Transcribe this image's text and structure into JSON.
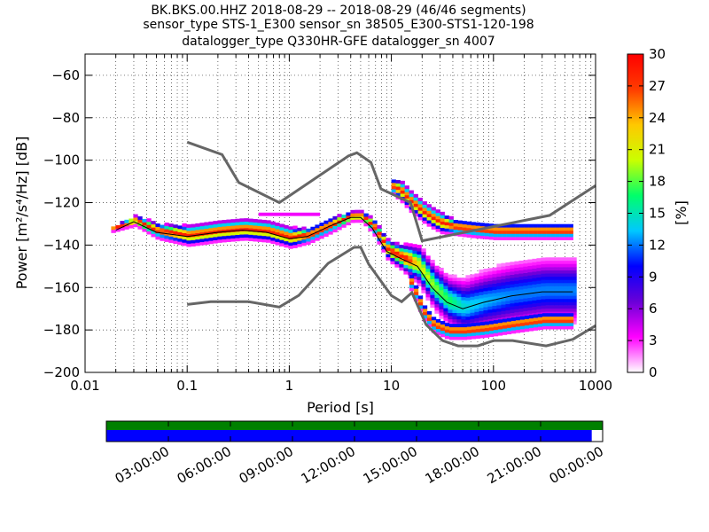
{
  "chart_data": {
    "type": "heatmap",
    "title": [
      "BK.BKS.00.HHZ   2018-08-29 -- 2018-08-29  (46/46 segments)",
      "sensor_type STS-1_E300 sensor_sn 38505_E300-STS1-120-198",
      "datalogger_type Q330HR-GFE datalogger_sn 4007"
    ],
    "xlabel": "Period [s]",
    "ylabel": "Power [m²/s⁴/Hz] [dB]",
    "x_scale": "log",
    "xlim": [
      0.01,
      1000
    ],
    "ylim": [
      -200,
      -50
    ],
    "x_ticks": [
      0.01,
      0.1,
      1,
      10,
      100,
      1000
    ],
    "x_tick_labels": [
      "0.01",
      "0.1",
      "1",
      "10",
      "100",
      "1000"
    ],
    "y_ticks": [
      -200,
      -180,
      -160,
      -140,
      -120,
      -100,
      -80,
      -60
    ],
    "y_tick_labels": [
      "−200",
      "−180",
      "−160",
      "−140",
      "−120",
      "−100",
      "−80",
      "−60"
    ],
    "grid": "dotted",
    "colorbar": {
      "label": "[%]",
      "range": [
        0,
        30
      ],
      "ticks": [
        0,
        3,
        6,
        9,
        12,
        15,
        18,
        21,
        24,
        27,
        30
      ],
      "colormap": [
        "#ffffff",
        "#ff00ff",
        "#6a00d8",
        "#0000ff",
        "#00c8ff",
        "#00ff6a",
        "#caff00",
        "#ffc800",
        "#ff3c00",
        "#ff0000"
      ]
    },
    "high_noise_model": [
      [
        0.1,
        -91.5
      ],
      [
        0.22,
        -97.4
      ],
      [
        0.32,
        -110.5
      ],
      [
        0.8,
        -120
      ],
      [
        3.8,
        -98
      ],
      [
        4.6,
        -96.5
      ],
      [
        6.3,
        -101
      ],
      [
        7.9,
        -113.5
      ],
      [
        15.4,
        -120
      ],
      [
        20,
        -138
      ],
      [
        354.8,
        -126
      ],
      [
        1000,
        -112
      ]
    ],
    "low_noise_model": [
      [
        0.1,
        -168
      ],
      [
        0.17,
        -166.7
      ],
      [
        0.4,
        -166.7
      ],
      [
        0.8,
        -169.2
      ],
      [
        1.24,
        -163.7
      ],
      [
        2.4,
        -148.6
      ],
      [
        4.3,
        -141.1
      ],
      [
        5,
        -141
      ],
      [
        6,
        -149
      ],
      [
        10,
        -163.8
      ],
      [
        12.6,
        -166.7
      ],
      [
        15.9,
        -162.4
      ],
      [
        21.9,
        -177.5
      ],
      [
        31.6,
        -185
      ],
      [
        45,
        -187.5
      ],
      [
        70,
        -187.5
      ],
      [
        101,
        -185
      ],
      [
        154,
        -185
      ],
      [
        328,
        -187.5
      ],
      [
        600,
        -184.4
      ],
      [
        1000,
        -178
      ]
    ],
    "mode_curve": [
      [
        0.02,
        -133
      ],
      [
        0.03,
        -129
      ],
      [
        0.05,
        -134
      ],
      [
        0.1,
        -136
      ],
      [
        0.2,
        -134
      ],
      [
        0.35,
        -133
      ],
      [
        0.6,
        -134
      ],
      [
        1,
        -137
      ],
      [
        1.5,
        -136
      ],
      [
        2.5,
        -131
      ],
      [
        4,
        -127
      ],
      [
        5,
        -127
      ],
      [
        6.5,
        -132
      ],
      [
        9,
        -143
      ],
      [
        12,
        -146
      ],
      [
        18,
        -150
      ],
      [
        25,
        -160
      ],
      [
        35,
        -167
      ],
      [
        50,
        -170
      ],
      [
        80,
        -167
      ],
      [
        150,
        -164
      ],
      [
        300,
        -162
      ],
      [
        600,
        -162
      ]
    ],
    "density_bands": [
      {
        "periods": [
          0.018,
          0.03,
          0.05,
          0.1,
          0.2,
          0.35,
          0.6,
          1,
          1.5,
          2.5,
          4,
          5,
          6.5,
          9,
          12,
          18,
          25,
          35,
          50,
          80,
          150,
          300,
          600
        ],
        "center_db": [
          -133,
          -129,
          -134,
          -136,
          -134,
          -133,
          -134,
          -137,
          -136,
          -131,
          -127,
          -127,
          -132,
          -143,
          -146,
          -150,
          -160,
          -167,
          -170,
          -167,
          -164,
          -162,
          -162
        ],
        "spread_db": [
          1,
          2,
          3,
          4,
          4,
          4,
          4,
          4,
          3,
          3,
          2,
          2,
          3,
          4,
          5,
          8,
          9,
          10,
          12,
          13,
          14,
          14,
          14
        ]
      },
      {
        "periods": [
          10,
          12,
          15,
          20,
          25,
          30,
          40,
          60,
          100,
          200,
          400,
          600
        ],
        "center_db": [
          -113,
          -115,
          -120,
          -125,
          -128,
          -130,
          -132,
          -133,
          -134,
          -134,
          -134,
          -134
        ],
        "spread_db": [
          3,
          4,
          4,
          4,
          4,
          4,
          3,
          3,
          3,
          3,
          3,
          3
        ]
      },
      {
        "periods": [
          15,
          20,
          25,
          35,
          50,
          80,
          150,
          300,
          600
        ],
        "center_db": [
          -158,
          -172,
          -178,
          -181,
          -181,
          -180,
          -178,
          -176,
          -176
        ],
        "spread_db": [
          3,
          3,
          3,
          3,
          3,
          3,
          3,
          3,
          3
        ]
      }
    ],
    "cross_band": {
      "periods": [
        0.5,
        0.75,
        1,
        1.5,
        2
      ],
      "db": -125.5
    }
  },
  "timeline": {
    "labels": [
      "03:00:00",
      "06:00:00",
      "09:00:00",
      "12:00:00",
      "15:00:00",
      "18:00:00",
      "21:00:00",
      "00:00:00"
    ],
    "data_fraction": 0.978,
    "data_color": "#0000ff",
    "gaps_color": "#008000"
  }
}
